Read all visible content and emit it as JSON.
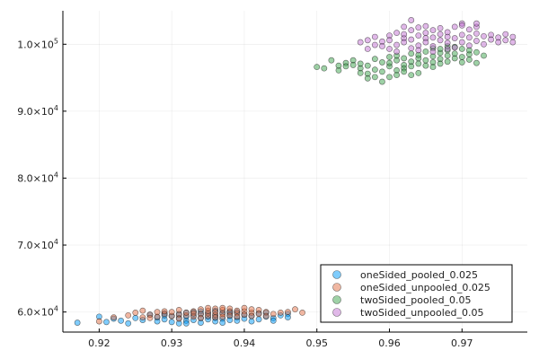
{
  "chart_data": {
    "type": "scatter",
    "title": "",
    "xlabel": "",
    "ylabel": "",
    "xlim": [
      0.915,
      0.979
    ],
    "ylim": [
      57000,
      105000
    ],
    "grid": true,
    "legend_position": "bottom-right",
    "x_ticks": [
      0.92,
      0.93,
      0.94,
      0.95,
      0.96,
      0.97
    ],
    "x_tick_labels": [
      "0.92",
      "0.93",
      "0.94",
      "0.95",
      "0.96",
      "0.97"
    ],
    "y_ticks": [
      60000,
      70000,
      80000,
      90000,
      100000
    ],
    "y_tick_labels": [
      {
        "mant": "6.0×10",
        "exp": "4"
      },
      {
        "mant": "7.0×10",
        "exp": "4"
      },
      {
        "mant": "8.0×10",
        "exp": "4"
      },
      {
        "mant": "9.0×10",
        "exp": "4"
      },
      {
        "mant": "1.0×10",
        "exp": "5"
      }
    ],
    "series": [
      {
        "name": "oneSided_pooled_0.025",
        "color": "#009af9",
        "points": [
          [
            0.917,
            58400
          ],
          [
            0.92,
            59300
          ],
          [
            0.921,
            58500
          ],
          [
            0.922,
            59000
          ],
          [
            0.923,
            58700
          ],
          [
            0.924,
            58300
          ],
          [
            0.925,
            59100
          ],
          [
            0.926,
            58800
          ],
          [
            0.927,
            59600
          ],
          [
            0.928,
            58600
          ],
          [
            0.928,
            59200
          ],
          [
            0.929,
            59800
          ],
          [
            0.929,
            58900
          ],
          [
            0.93,
            59400
          ],
          [
            0.93,
            58500
          ],
          [
            0.931,
            59700
          ],
          [
            0.931,
            59100
          ],
          [
            0.932,
            58700
          ],
          [
            0.932,
            59900
          ],
          [
            0.932,
            59300
          ],
          [
            0.933,
            58800
          ],
          [
            0.933,
            59500
          ],
          [
            0.933,
            60000
          ],
          [
            0.934,
            59100
          ],
          [
            0.934,
            58400
          ],
          [
            0.934,
            59700
          ],
          [
            0.935,
            59300
          ],
          [
            0.935,
            58900
          ],
          [
            0.935,
            59800
          ],
          [
            0.936,
            59100
          ],
          [
            0.936,
            58600
          ],
          [
            0.936,
            59500
          ],
          [
            0.937,
            59900
          ],
          [
            0.937,
            59000
          ],
          [
            0.937,
            58400
          ],
          [
            0.938,
            59400
          ],
          [
            0.938,
            58800
          ],
          [
            0.938,
            59800
          ],
          [
            0.939,
            59200
          ],
          [
            0.939,
            58700
          ],
          [
            0.94,
            59600
          ],
          [
            0.94,
            59000
          ],
          [
            0.941,
            58600
          ],
          [
            0.941,
            59400
          ],
          [
            0.942,
            59800
          ],
          [
            0.942,
            58900
          ],
          [
            0.943,
            59300
          ],
          [
            0.943,
            59900
          ],
          [
            0.944,
            59100
          ],
          [
            0.944,
            58700
          ],
          [
            0.945,
            59500
          ],
          [
            0.946,
            59700
          ],
          [
            0.946,
            59200
          ],
          [
            0.931,
            58300
          ],
          [
            0.929,
            59500
          ],
          [
            0.934,
            60100
          ],
          [
            0.936,
            60200
          ],
          [
            0.938,
            60100
          ],
          [
            0.932,
            58300
          ],
          [
            0.939,
            60000
          ]
        ]
      },
      {
        "name": "oneSided_unpooled_0.025",
        "color": "#e26f46",
        "points": [
          [
            0.92,
            58600
          ],
          [
            0.922,
            59200
          ],
          [
            0.924,
            59500
          ],
          [
            0.925,
            59900
          ],
          [
            0.926,
            59200
          ],
          [
            0.926,
            60200
          ],
          [
            0.927,
            59600
          ],
          [
            0.928,
            59300
          ],
          [
            0.928,
            60000
          ],
          [
            0.929,
            59700
          ],
          [
            0.93,
            59400
          ],
          [
            0.93,
            60000
          ],
          [
            0.931,
            59600
          ],
          [
            0.931,
            60300
          ],
          [
            0.932,
            59500
          ],
          [
            0.932,
            59900
          ],
          [
            0.933,
            60100
          ],
          [
            0.933,
            59300
          ],
          [
            0.934,
            59700
          ],
          [
            0.934,
            60400
          ],
          [
            0.935,
            59800
          ],
          [
            0.935,
            59400
          ],
          [
            0.935,
            60200
          ],
          [
            0.936,
            59600
          ],
          [
            0.936,
            60500
          ],
          [
            0.936,
            60000
          ],
          [
            0.937,
            59700
          ],
          [
            0.937,
            60300
          ],
          [
            0.937,
            59300
          ],
          [
            0.938,
            60000
          ],
          [
            0.938,
            59500
          ],
          [
            0.938,
            60500
          ],
          [
            0.939,
            59800
          ],
          [
            0.939,
            60200
          ],
          [
            0.939,
            59300
          ],
          [
            0.94,
            60100
          ],
          [
            0.94,
            59600
          ],
          [
            0.94,
            60600
          ],
          [
            0.941,
            59900
          ],
          [
            0.941,
            59400
          ],
          [
            0.942,
            60300
          ],
          [
            0.942,
            59700
          ],
          [
            0.943,
            60000
          ],
          [
            0.943,
            59400
          ],
          [
            0.944,
            59700
          ],
          [
            0.945,
            59900
          ],
          [
            0.946,
            60000
          ],
          [
            0.947,
            60400
          ],
          [
            0.948,
            59900
          ],
          [
            0.933,
            59800
          ],
          [
            0.931,
            59000
          ],
          [
            0.936,
            59200
          ],
          [
            0.929,
            60100
          ],
          [
            0.934,
            59100
          ],
          [
            0.937,
            60600
          ],
          [
            0.941,
            60400
          ],
          [
            0.927,
            59100
          ],
          [
            0.935,
            60600
          ]
        ]
      },
      {
        "name": "twoSided_pooled_0.05",
        "color": "#3da44d",
        "points": [
          [
            0.95,
            96600
          ],
          [
            0.951,
            96400
          ],
          [
            0.952,
            97600
          ],
          [
            0.953,
            96100
          ],
          [
            0.954,
            97200
          ],
          [
            0.954,
            96700
          ],
          [
            0.955,
            97600
          ],
          [
            0.956,
            96400
          ],
          [
            0.956,
            97100
          ],
          [
            0.957,
            95600
          ],
          [
            0.957,
            96800
          ],
          [
            0.958,
            97800
          ],
          [
            0.958,
            96200
          ],
          [
            0.959,
            97300
          ],
          [
            0.959,
            95900
          ],
          [
            0.96,
            96700
          ],
          [
            0.96,
            98100
          ],
          [
            0.96,
            97200
          ],
          [
            0.961,
            96100
          ],
          [
            0.961,
            97600
          ],
          [
            0.961,
            98300
          ],
          [
            0.962,
            96900
          ],
          [
            0.962,
            97900
          ],
          [
            0.962,
            96400
          ],
          [
            0.963,
            97400
          ],
          [
            0.963,
            98600
          ],
          [
            0.963,
            96700
          ],
          [
            0.964,
            97900
          ],
          [
            0.964,
            97100
          ],
          [
            0.964,
            98400
          ],
          [
            0.965,
            96800
          ],
          [
            0.965,
            97600
          ],
          [
            0.965,
            98900
          ],
          [
            0.966,
            97300
          ],
          [
            0.966,
            98200
          ],
          [
            0.966,
            96600
          ],
          [
            0.967,
            97800
          ],
          [
            0.967,
            98700
          ],
          [
            0.967,
            97100
          ],
          [
            0.968,
            98300
          ],
          [
            0.968,
            97400
          ],
          [
            0.968,
            99100
          ],
          [
            0.969,
            97900
          ],
          [
            0.969,
            98600
          ],
          [
            0.97,
            97300
          ],
          [
            0.97,
            98100
          ],
          [
            0.97,
            99300
          ],
          [
            0.971,
            97700
          ],
          [
            0.971,
            98500
          ],
          [
            0.972,
            97200
          ],
          [
            0.972,
            98800
          ],
          [
            0.958,
            95100
          ],
          [
            0.959,
            94400
          ],
          [
            0.961,
            95400
          ],
          [
            0.956,
            95700
          ],
          [
            0.963,
            95400
          ],
          [
            0.957,
            94900
          ],
          [
            0.962,
            95900
          ],
          [
            0.964,
            95700
          ],
          [
            0.96,
            95100
          ],
          [
            0.955,
            96900
          ],
          [
            0.953,
            96800
          ],
          [
            0.966,
            99400
          ],
          [
            0.969,
            99600
          ],
          [
            0.971,
            99100
          ],
          [
            0.973,
            98300
          ],
          [
            0.968,
            99700
          ],
          [
            0.967,
            99300
          ]
        ]
      },
      {
        "name": "twoSided_unpooled_0.05",
        "color": "#c271d2",
        "points": [
          [
            0.956,
            100300
          ],
          [
            0.957,
            100600
          ],
          [
            0.958,
            99900
          ],
          [
            0.958,
            101100
          ],
          [
            0.959,
            100400
          ],
          [
            0.959,
            99700
          ],
          [
            0.96,
            101300
          ],
          [
            0.96,
            100600
          ],
          [
            0.961,
            101700
          ],
          [
            0.961,
            99900
          ],
          [
            0.962,
            100900
          ],
          [
            0.962,
            101500
          ],
          [
            0.962,
            100300
          ],
          [
            0.963,
            103600
          ],
          [
            0.963,
            102100
          ],
          [
            0.963,
            100700
          ],
          [
            0.964,
            101300
          ],
          [
            0.964,
            99800
          ],
          [
            0.964,
            102500
          ],
          [
            0.965,
            100900
          ],
          [
            0.965,
            101700
          ],
          [
            0.965,
            100300
          ],
          [
            0.966,
            102100
          ],
          [
            0.966,
            101000
          ],
          [
            0.966,
            99700
          ],
          [
            0.967,
            101500
          ],
          [
            0.967,
            102400
          ],
          [
            0.967,
            100600
          ],
          [
            0.968,
            101800
          ],
          [
            0.968,
            100200
          ],
          [
            0.968,
            101100
          ],
          [
            0.969,
            102600
          ],
          [
            0.969,
            100900
          ],
          [
            0.969,
            99500
          ],
          [
            0.97,
            101400
          ],
          [
            0.97,
            103100
          ],
          [
            0.97,
            100300
          ],
          [
            0.971,
            102200
          ],
          [
            0.971,
            101000
          ],
          [
            0.971,
            99800
          ],
          [
            0.972,
            101600
          ],
          [
            0.972,
            100500
          ],
          [
            0.972,
            102600
          ],
          [
            0.973,
            101200
          ],
          [
            0.973,
            100000
          ],
          [
            0.974,
            101400
          ],
          [
            0.974,
            100700
          ],
          [
            0.975,
            101000
          ],
          [
            0.975,
            100300
          ],
          [
            0.976,
            101500
          ],
          [
            0.976,
            100600
          ],
          [
            0.977,
            101100
          ],
          [
            0.977,
            100300
          ],
          [
            0.96,
            99300
          ],
          [
            0.963,
            99400
          ],
          [
            0.966,
            98900
          ],
          [
            0.961,
            98900
          ],
          [
            0.964,
            99100
          ],
          [
            0.957,
            99300
          ],
          [
            0.97,
            102800
          ],
          [
            0.972,
            103100
          ],
          [
            0.968,
            99300
          ],
          [
            0.965,
            102700
          ],
          [
            0.962,
            102600
          ]
        ]
      }
    ]
  }
}
